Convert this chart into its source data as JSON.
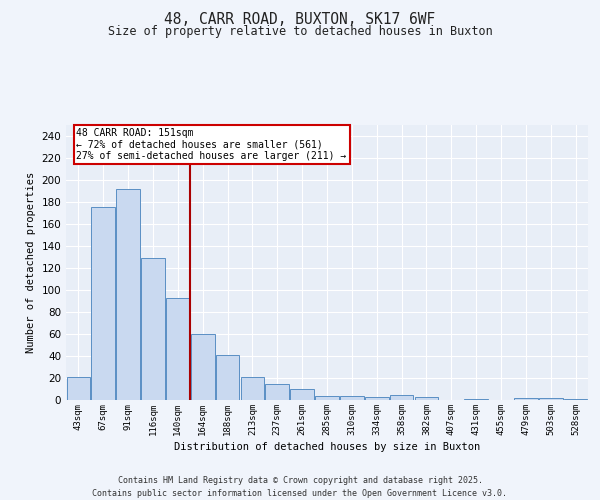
{
  "title_line1": "48, CARR ROAD, BUXTON, SK17 6WF",
  "title_line2": "Size of property relative to detached houses in Buxton",
  "xlabel": "Distribution of detached houses by size in Buxton",
  "ylabel": "Number of detached properties",
  "categories": [
    "43sqm",
    "67sqm",
    "91sqm",
    "116sqm",
    "140sqm",
    "164sqm",
    "188sqm",
    "213sqm",
    "237sqm",
    "261sqm",
    "285sqm",
    "310sqm",
    "334sqm",
    "358sqm",
    "382sqm",
    "407sqm",
    "431sqm",
    "455sqm",
    "479sqm",
    "503sqm",
    "528sqm"
  ],
  "values": [
    21,
    175,
    192,
    129,
    93,
    60,
    41,
    21,
    15,
    10,
    4,
    4,
    3,
    5,
    3,
    0,
    1,
    0,
    2,
    2,
    1
  ],
  "bar_color": "#c9d9f0",
  "bar_edge_color": "#5a8fc4",
  "vline_x": 4.5,
  "vline_color": "#aa0000",
  "annotation_text": "48 CARR ROAD: 151sqm\n← 72% of detached houses are smaller (561)\n27% of semi-detached houses are larger (211) →",
  "ylim": [
    0,
    250
  ],
  "yticks": [
    0,
    20,
    40,
    60,
    80,
    100,
    120,
    140,
    160,
    180,
    200,
    220,
    240
  ],
  "background_color": "#e8eef7",
  "grid_color": "#ffffff",
  "fig_background": "#f0f4fb",
  "footer_line1": "Contains HM Land Registry data © Crown copyright and database right 2025.",
  "footer_line2": "Contains public sector information licensed under the Open Government Licence v3.0."
}
